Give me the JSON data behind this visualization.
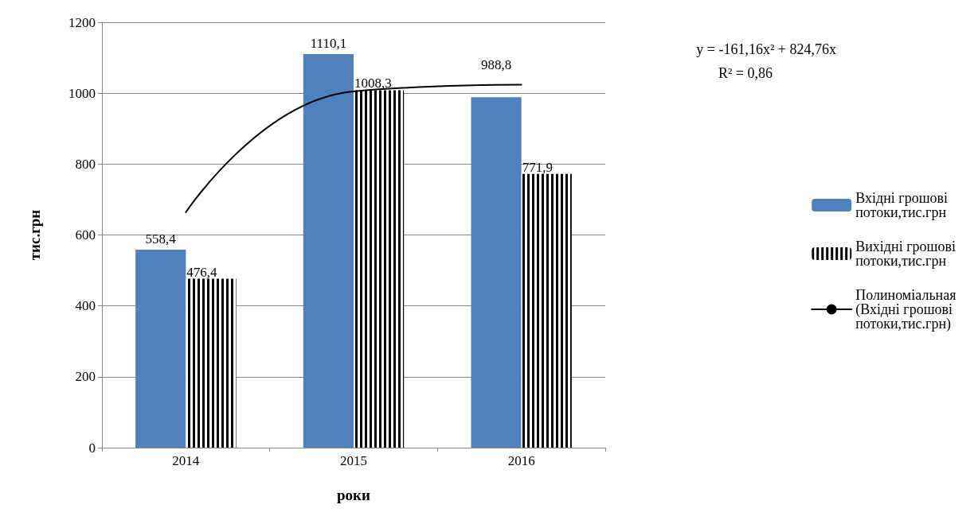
{
  "chart_data": {
    "type": "bar",
    "xlabel": "роки",
    "ylabel": "тис.грн",
    "categories": [
      "2014",
      "2015",
      "2016"
    ],
    "series": [
      {
        "name": "Вхідні грошові потоки,тис.грн",
        "color": "#4f81bd",
        "values": [
          558.4,
          1110.1,
          988.8
        ],
        "value_labels": [
          "558,4",
          "1110,1",
          "988,8"
        ]
      },
      {
        "name": "Вихідні грошові потоки,тис.грн",
        "color": "#000000",
        "values": [
          476.4,
          1008.3,
          771.9
        ],
        "value_labels": [
          "476,4",
          "1008,3",
          "771,9"
        ]
      },
      {
        "name": "Полиноміальная (Вхідні грошові потоки,тис.грн)",
        "type": "line",
        "color": "#000000",
        "values": [
          664,
          1005,
          1024
        ]
      }
    ],
    "ylim": [
      0,
      1200
    ],
    "yticks": [
      0,
      200,
      400,
      600,
      800,
      1000,
      1200
    ],
    "grid": "y",
    "legend": "right",
    "marker": "none",
    "annotations": [
      "y = -161,16x² + 824,76x",
      "R² = 0,86"
    ]
  }
}
